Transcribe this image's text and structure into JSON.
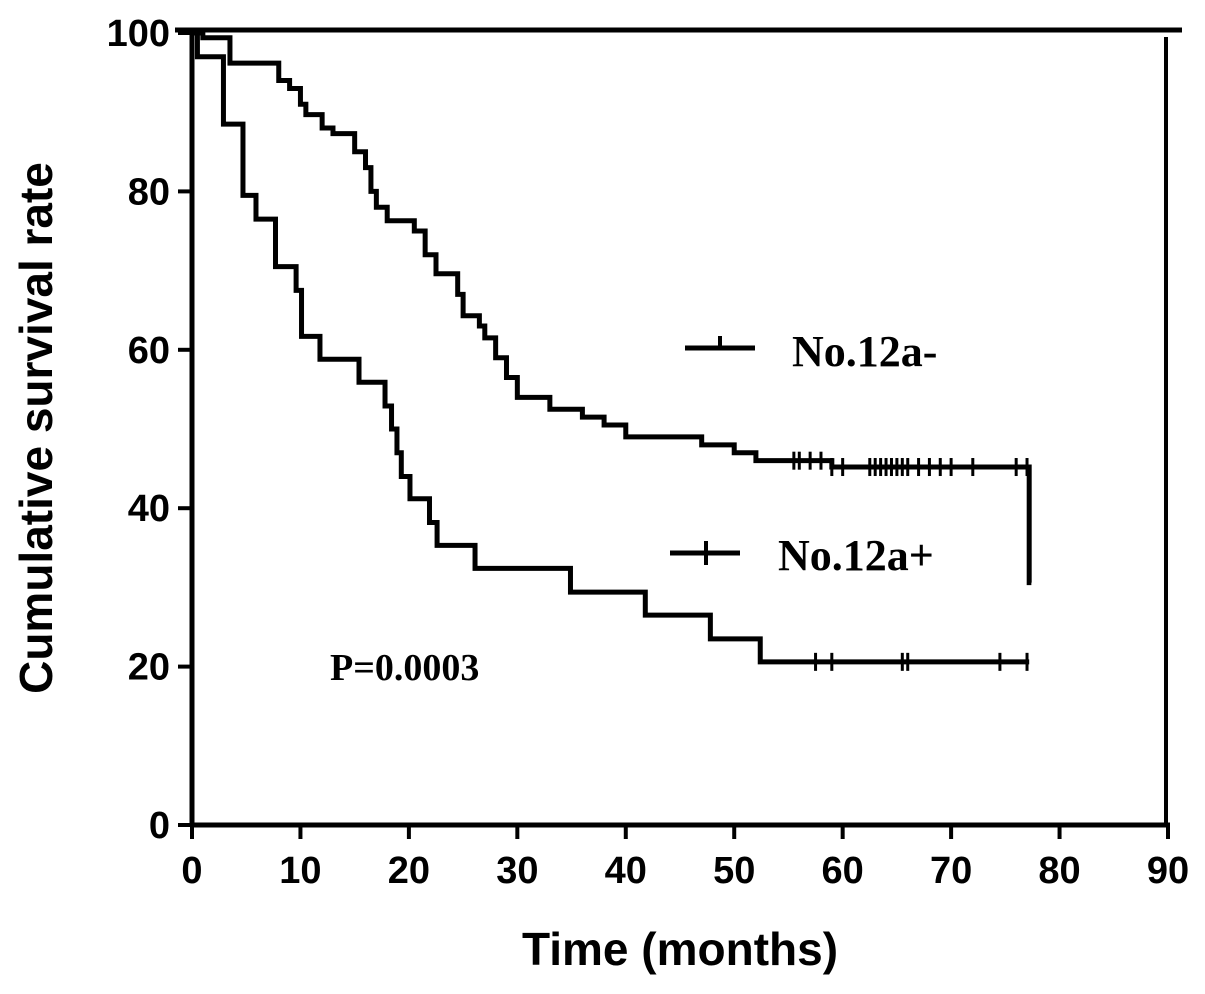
{
  "chart_data": {
    "type": "line",
    "subtype": "kaplan-meier",
    "title": "",
    "xlabel": "Time (months)",
    "ylabel": "Cumulative survival rate",
    "xlim": [
      0,
      90
    ],
    "ylim": [
      0,
      100
    ],
    "xticks": [
      0,
      10,
      20,
      30,
      40,
      50,
      60,
      70,
      80,
      90
    ],
    "yticks": [
      0,
      20,
      40,
      60,
      80,
      100
    ],
    "grid": false,
    "legend_placement": "center-right",
    "annotation": "P=0.0003",
    "series": [
      {
        "name": "No.12a-",
        "steps": [
          [
            0,
            100
          ],
          [
            1,
            99.4
          ],
          [
            3.5,
            96.2
          ],
          [
            8,
            94
          ],
          [
            9,
            93
          ],
          [
            10,
            91
          ],
          [
            10.5,
            89.7
          ],
          [
            12,
            88
          ],
          [
            13,
            87.3
          ],
          [
            15,
            85
          ],
          [
            16,
            83
          ],
          [
            16.5,
            80
          ],
          [
            17,
            78
          ],
          [
            18,
            76.3
          ],
          [
            20.5,
            75
          ],
          [
            21.5,
            72
          ],
          [
            22.5,
            69.6
          ],
          [
            24.5,
            67
          ],
          [
            25,
            64.3
          ],
          [
            26.5,
            63
          ],
          [
            27,
            61.5
          ],
          [
            28,
            59
          ],
          [
            29,
            56.5
          ],
          [
            30,
            54
          ],
          [
            33,
            52.5
          ],
          [
            36,
            51.5
          ],
          [
            38,
            50.5
          ],
          [
            40,
            49
          ],
          [
            47,
            48
          ],
          [
            50,
            47
          ],
          [
            52,
            46
          ],
          [
            59,
            45.2
          ],
          [
            77.2,
            30.6
          ]
        ],
        "end": 77.4,
        "censored": [
          55.5,
          56,
          57,
          58,
          59,
          60,
          62.5,
          63,
          63.5,
          64,
          64.5,
          65,
          65.5,
          66,
          67,
          68,
          69,
          70,
          72,
          76,
          77
        ]
      },
      {
        "name": "No.12a+",
        "steps": [
          [
            0,
            100
          ],
          [
            0.5,
            97
          ],
          [
            2.9,
            88.5
          ],
          [
            4.7,
            79.5
          ],
          [
            5.9,
            76.5
          ],
          [
            7.7,
            70.5
          ],
          [
            9.6,
            67.5
          ],
          [
            10.1,
            61.7
          ],
          [
            11.8,
            58.8
          ],
          [
            15.4,
            55.9
          ],
          [
            17.8,
            52.9
          ],
          [
            18.4,
            50
          ],
          [
            18.9,
            47
          ],
          [
            19.3,
            44
          ],
          [
            20.1,
            41.2
          ],
          [
            21.9,
            38.2
          ],
          [
            22.6,
            35.3
          ],
          [
            26.1,
            32.4
          ],
          [
            34.9,
            29.4
          ],
          [
            41.8,
            26.5
          ],
          [
            47.8,
            23.5
          ],
          [
            52.4,
            20.6
          ]
        ],
        "end": 77.2,
        "censored": [
          57.5,
          59,
          65.5,
          66,
          74.5,
          77
        ]
      }
    ]
  }
}
